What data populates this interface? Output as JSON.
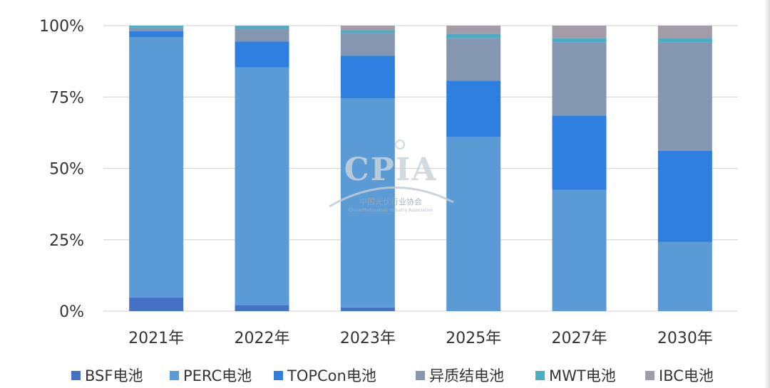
{
  "chart_data": {
    "type": "bar",
    "stacked": true,
    "categories": [
      "2021年",
      "2022年",
      "2023年",
      "2025年",
      "2027年",
      "2030年"
    ],
    "series": [
      {
        "name": "BSF电池",
        "color": "#4472c4",
        "values": [
          4.8,
          2.1,
          1.3,
          0,
          0,
          0
        ]
      },
      {
        "name": "PERC电池",
        "color": "#5b9bd5",
        "values": [
          91.2,
          83.3,
          73.2,
          61.0,
          42.5,
          24.2
        ]
      },
      {
        "name": "TOPCon电池",
        "color": "#2e7fdf",
        "values": [
          2.0,
          9.0,
          14.9,
          19.7,
          26.0,
          32.0
        ]
      },
      {
        "name": "异质结电池",
        "color": "#8496b0",
        "values": [
          1.3,
          4.5,
          8.0,
          15.0,
          25.6,
          38.0
        ]
      },
      {
        "name": "MWT电池",
        "color": "#4bacc6",
        "values": [
          0.7,
          1.0,
          1.0,
          1.5,
          1.5,
          1.3
        ]
      },
      {
        "name": "IBC电池",
        "color": "#a39ca6",
        "values": [
          0,
          0.1,
          1.6,
          2.8,
          4.4,
          4.5
        ]
      }
    ],
    "y_ticks": [
      "0%",
      "25%",
      "50%",
      "75%",
      "100%"
    ],
    "ylim": [
      0,
      100
    ],
    "grid": true,
    "legend_position": "bottom",
    "watermark": {
      "brand": "CPIA",
      "org": "中国光伏行业协会",
      "org_en": "China Photovoltaic Industry Association"
    }
  }
}
